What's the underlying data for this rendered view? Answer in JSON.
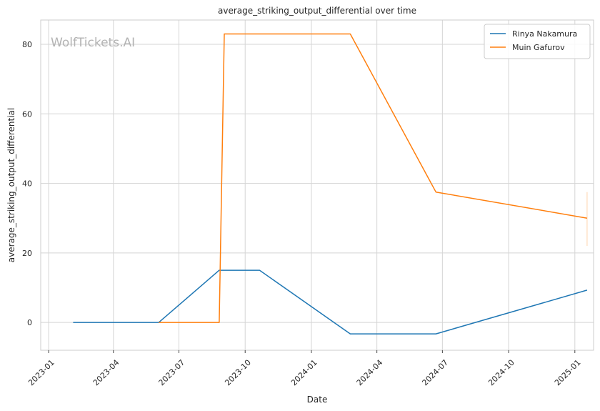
{
  "chart_data": {
    "type": "line",
    "title": "average_striking_output_differential over time",
    "xlabel": "Date",
    "ylabel": "average_striking_output_differential",
    "watermark": "WolfTickets.AI",
    "x_ticks": [
      "2023-01",
      "2023-04",
      "2023-07",
      "2023-10",
      "2024-01",
      "2024-04",
      "2024-07",
      "2024-10",
      "2025-01"
    ],
    "y_ticks": [
      0,
      20,
      40,
      60,
      80
    ],
    "xlim": [
      "2022-12-21",
      "2025-01-27"
    ],
    "ylim": [
      -8,
      87
    ],
    "grid": true,
    "legend_position": "top-right",
    "series": [
      {
        "name": "Rinya Nakamura",
        "color": "#1f77b4",
        "points": [
          {
            "x": "2023-02-04",
            "y": 0
          },
          {
            "x": "2023-06-03",
            "y": 0
          },
          {
            "x": "2023-08-26",
            "y": 15
          },
          {
            "x": "2023-10-21",
            "y": 15
          },
          {
            "x": "2024-02-24",
            "y": -3.3
          },
          {
            "x": "2024-06-22",
            "y": -3.3
          },
          {
            "x": "2025-01-18",
            "y": 9.3
          }
        ]
      },
      {
        "name": "Muin Gafurov",
        "color": "#ff7f0e",
        "points": [
          {
            "x": "2023-06-03",
            "y": 0
          },
          {
            "x": "2023-08-26",
            "y": 0
          },
          {
            "x": "2023-09-02",
            "y": 83
          },
          {
            "x": "2024-02-24",
            "y": 83
          },
          {
            "x": "2024-06-22",
            "y": 37.5
          },
          {
            "x": "2025-01-18",
            "y": 30
          },
          {
            "x": "2025-01-18",
            "y": 22,
            "error_low": 22,
            "error_high": 37.5
          }
        ]
      }
    ]
  }
}
